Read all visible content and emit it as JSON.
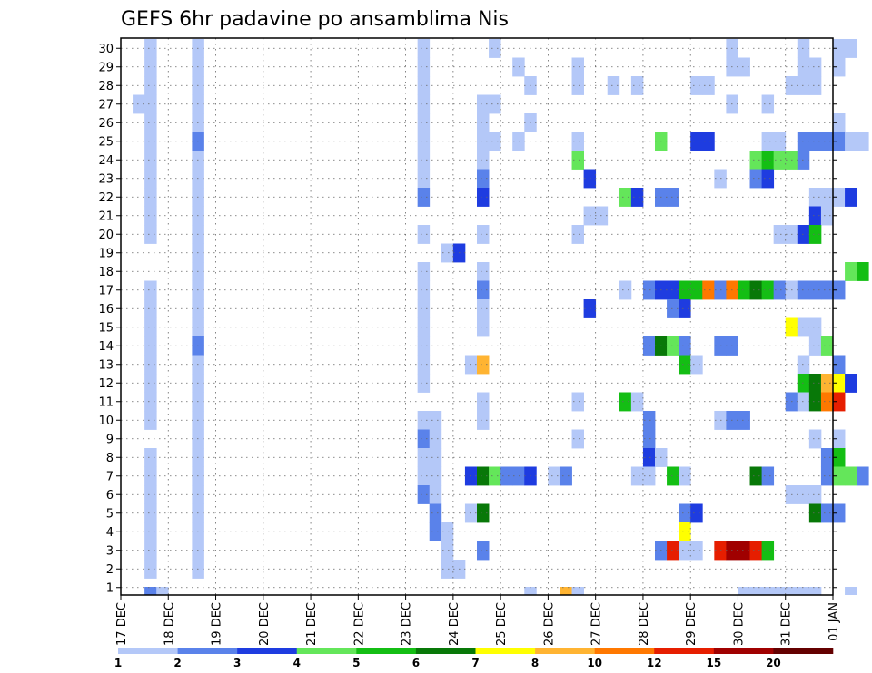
{
  "chart_data": {
    "type": "heatmap",
    "title": "GEFS 6hr padavine po ansamblima Nis",
    "xlabel": "",
    "ylabel": "",
    "x_ticks": [
      "17 DEC",
      "18 DEC",
      "19 DEC",
      "20 DEC",
      "21 DEC",
      "22 DEC",
      "23 DEC",
      "24 DEC",
      "25 DEC",
      "26 DEC",
      "27 DEC",
      "28 DEC",
      "29 DEC",
      "30 DEC",
      "31 DEC",
      "01 JAN"
    ],
    "y_ticks": [
      "1",
      "2",
      "3",
      "4",
      "5",
      "6",
      "7",
      "8",
      "9",
      "10",
      "11",
      "12",
      "13",
      "14",
      "15",
      "16",
      "17",
      "18",
      "19",
      "20",
      "21",
      "22",
      "23",
      "24",
      "25",
      "26",
      "27",
      "28",
      "29",
      "30"
    ],
    "time_steps_per_day": 4,
    "grid": true,
    "legend_position": "bottom",
    "legend": {
      "labels": [
        "1",
        "2",
        "3",
        "4",
        "5",
        "6",
        "7",
        "8",
        "10",
        "12",
        "15",
        "20"
      ],
      "colors": [
        "#b4c8f8",
        "#5a82ea",
        "#1e3ce0",
        "#64e65a",
        "#14be14",
        "#087808",
        "#ffff00",
        "#ffb432",
        "#ff7800",
        "#e61e00",
        "#a00000",
        "#640000"
      ]
    },
    "cells": [
      [
        30,
        0.5,
        1
      ],
      [
        30,
        1.5,
        1
      ],
      [
        30,
        6.25,
        1
      ],
      [
        30,
        7.75,
        1
      ],
      [
        30,
        12.75,
        1
      ],
      [
        30,
        14.25,
        1
      ],
      [
        30,
        15,
        1
      ],
      [
        30,
        15.25,
        1
      ],
      [
        29,
        0.5,
        1
      ],
      [
        29,
        1.5,
        1
      ],
      [
        29,
        6.25,
        1
      ],
      [
        29,
        8.25,
        1
      ],
      [
        29,
        9.5,
        1
      ],
      [
        29,
        12.75,
        1
      ],
      [
        29,
        13,
        1
      ],
      [
        29,
        14.25,
        1
      ],
      [
        29,
        14.5,
        1
      ],
      [
        29,
        15,
        1
      ],
      [
        28,
        0.5,
        1
      ],
      [
        28,
        1.5,
        1
      ],
      [
        28,
        6.25,
        1
      ],
      [
        28,
        8.5,
        1
      ],
      [
        28,
        9.5,
        1
      ],
      [
        28,
        10.25,
        1
      ],
      [
        28,
        10.75,
        1
      ],
      [
        28,
        12,
        1
      ],
      [
        28,
        12.25,
        1
      ],
      [
        28,
        14,
        1
      ],
      [
        28,
        14.25,
        1
      ],
      [
        28,
        14.5,
        1
      ],
      [
        27,
        0.25,
        1
      ],
      [
        27,
        0.5,
        1
      ],
      [
        27,
        1.5,
        1
      ],
      [
        27,
        6.25,
        1
      ],
      [
        27,
        7.5,
        1
      ],
      [
        27,
        7.75,
        1
      ],
      [
        27,
        12.75,
        1
      ],
      [
        27,
        13.5,
        1
      ],
      [
        26,
        0.5,
        1
      ],
      [
        26,
        1.5,
        1
      ],
      [
        26,
        6.25,
        1
      ],
      [
        26,
        7.5,
        1
      ],
      [
        26,
        8.5,
        1
      ],
      [
        26,
        15,
        1
      ],
      [
        25,
        0.5,
        1
      ],
      [
        25,
        1.5,
        2
      ],
      [
        25,
        6.25,
        1
      ],
      [
        25,
        7.5,
        1
      ],
      [
        25,
        7.75,
        1
      ],
      [
        25,
        8.25,
        1
      ],
      [
        25,
        9.5,
        1
      ],
      [
        25,
        11.25,
        4
      ],
      [
        25,
        12,
        3
      ],
      [
        25,
        12.25,
        3
      ],
      [
        25,
        13.5,
        1
      ],
      [
        25,
        13.75,
        1
      ],
      [
        25,
        14.25,
        2
      ],
      [
        25,
        14.5,
        2
      ],
      [
        25,
        14.75,
        2
      ],
      [
        25,
        15,
        2
      ],
      [
        25,
        15.25,
        1
      ],
      [
        25,
        15.5,
        1
      ],
      [
        24,
        0.5,
        1
      ],
      [
        24,
        1.5,
        1
      ],
      [
        24,
        6.25,
        1
      ],
      [
        24,
        7.5,
        1
      ],
      [
        24,
        9.5,
        4
      ],
      [
        24,
        13.25,
        4
      ],
      [
        24,
        13.5,
        5
      ],
      [
        24,
        13.75,
        4
      ],
      [
        24,
        14,
        4
      ],
      [
        24,
        14.25,
        2
      ],
      [
        23,
        0.5,
        1
      ],
      [
        23,
        1.5,
        1
      ],
      [
        23,
        6.25,
        1
      ],
      [
        23,
        7.5,
        2
      ],
      [
        23,
        9.75,
        3
      ],
      [
        23,
        12.5,
        1
      ],
      [
        23,
        13.25,
        2
      ],
      [
        23,
        13.5,
        3
      ],
      [
        22,
        0.5,
        1
      ],
      [
        22,
        1.5,
        1
      ],
      [
        22,
        6.25,
        2
      ],
      [
        22,
        7.5,
        3
      ],
      [
        22,
        10.5,
        4
      ],
      [
        22,
        10.75,
        3
      ],
      [
        22,
        11.25,
        2
      ],
      [
        22,
        11.5,
        2
      ],
      [
        22,
        14.5,
        1
      ],
      [
        22,
        14.75,
        1
      ],
      [
        22,
        15,
        1
      ],
      [
        22,
        15.25,
        3
      ],
      [
        21,
        0.5,
        1
      ],
      [
        21,
        1.5,
        1
      ],
      [
        21,
        9.75,
        1
      ],
      [
        21,
        10,
        1
      ],
      [
        21,
        14.5,
        3
      ],
      [
        21,
        14.75,
        1
      ],
      [
        20,
        0.5,
        1
      ],
      [
        20,
        1.5,
        1
      ],
      [
        20,
        6.25,
        1
      ],
      [
        20,
        7.5,
        1
      ],
      [
        20,
        9.5,
        1
      ],
      [
        20,
        13.75,
        1
      ],
      [
        20,
        14,
        1
      ],
      [
        20,
        14.25,
        3
      ],
      [
        20,
        14.5,
        5
      ],
      [
        19,
        1.5,
        1
      ],
      [
        19,
        6.75,
        1
      ],
      [
        19,
        7,
        3
      ],
      [
        18,
        1.5,
        1
      ],
      [
        18,
        6.25,
        1
      ],
      [
        18,
        7.5,
        1
      ],
      [
        18,
        15.25,
        4
      ],
      [
        18,
        15.5,
        5
      ],
      [
        17,
        0.5,
        1
      ],
      [
        17,
        1.5,
        1
      ],
      [
        17,
        6.25,
        1
      ],
      [
        17,
        7.5,
        2
      ],
      [
        17,
        10.5,
        1
      ],
      [
        17,
        11,
        2
      ],
      [
        17,
        11.25,
        3
      ],
      [
        17,
        11.5,
        3
      ],
      [
        17,
        11.75,
        5
      ],
      [
        17,
        12,
        5
      ],
      [
        17,
        12.25,
        9
      ],
      [
        17,
        12.5,
        2
      ],
      [
        17,
        12.75,
        9
      ],
      [
        17,
        13,
        5
      ],
      [
        17,
        13.25,
        6
      ],
      [
        17,
        13.5,
        5
      ],
      [
        17,
        13.75,
        2
      ],
      [
        17,
        14,
        1
      ],
      [
        17,
        14.25,
        2
      ],
      [
        17,
        14.5,
        2
      ],
      [
        17,
        14.75,
        2
      ],
      [
        17,
        15,
        2
      ],
      [
        16,
        0.5,
        1
      ],
      [
        16,
        1.5,
        1
      ],
      [
        16,
        6.25,
        1
      ],
      [
        16,
        7.5,
        1
      ],
      [
        16,
        9.75,
        3
      ],
      [
        16,
        11.5,
        2
      ],
      [
        16,
        11.75,
        3
      ],
      [
        15,
        0.5,
        1
      ],
      [
        15,
        1.5,
        1
      ],
      [
        15,
        6.25,
        1
      ],
      [
        15,
        7.5,
        1
      ],
      [
        15,
        14,
        7
      ],
      [
        15,
        14.25,
        1
      ],
      [
        15,
        14.5,
        1
      ],
      [
        14,
        0.5,
        1
      ],
      [
        14,
        1.5,
        2
      ],
      [
        14,
        6.25,
        1
      ],
      [
        14,
        11,
        2
      ],
      [
        14,
        11.25,
        6
      ],
      [
        14,
        11.5,
        4
      ],
      [
        14,
        11.75,
        2
      ],
      [
        14,
        12.5,
        2
      ],
      [
        14,
        12.75,
        2
      ],
      [
        14,
        14.5,
        1
      ],
      [
        14,
        14.75,
        4
      ],
      [
        13,
        0.5,
        1
      ],
      [
        13,
        1.5,
        1
      ],
      [
        13,
        6.25,
        1
      ],
      [
        13,
        7.25,
        1
      ],
      [
        13,
        7.5,
        8
      ],
      [
        13,
        11.75,
        5
      ],
      [
        13,
        12,
        1
      ],
      [
        13,
        14.25,
        1
      ],
      [
        13,
        15,
        2
      ],
      [
        12,
        0.5,
        1
      ],
      [
        12,
        1.5,
        1
      ],
      [
        12,
        6.25,
        1
      ],
      [
        12,
        14.25,
        5
      ],
      [
        12,
        14.5,
        6
      ],
      [
        12,
        14.75,
        8
      ],
      [
        12,
        15,
        7
      ],
      [
        12,
        15.25,
        3
      ],
      [
        11,
        0.5,
        1
      ],
      [
        11,
        1.5,
        1
      ],
      [
        11,
        7.5,
        1
      ],
      [
        11,
        9.5,
        1
      ],
      [
        11,
        10.5,
        5
      ],
      [
        11,
        10.75,
        1
      ],
      [
        11,
        14,
        2
      ],
      [
        11,
        14.25,
        1
      ],
      [
        11,
        14.5,
        6
      ],
      [
        11,
        14.75,
        9
      ],
      [
        11,
        15,
        10
      ],
      [
        10,
        0.5,
        1
      ],
      [
        10,
        1.5,
        1
      ],
      [
        10,
        6.25,
        1
      ],
      [
        10,
        6.5,
        1
      ],
      [
        10,
        7.5,
        1
      ],
      [
        10,
        11,
        2
      ],
      [
        10,
        12.5,
        1
      ],
      [
        10,
        12.75,
        2
      ],
      [
        10,
        13,
        2
      ],
      [
        9,
        1.5,
        1
      ],
      [
        9,
        6.25,
        2
      ],
      [
        9,
        6.5,
        1
      ],
      [
        9,
        9.5,
        1
      ],
      [
        9,
        11,
        2
      ],
      [
        9,
        14.5,
        1
      ],
      [
        9,
        15,
        1
      ],
      [
        8,
        0.5,
        1
      ],
      [
        8,
        1.5,
        1
      ],
      [
        8,
        6.25,
        1
      ],
      [
        8,
        6.5,
        1
      ],
      [
        8,
        11,
        3
      ],
      [
        8,
        11.25,
        1
      ],
      [
        8,
        14.75,
        2
      ],
      [
        8,
        15,
        5
      ],
      [
        7,
        0.5,
        1
      ],
      [
        7,
        1.5,
        1
      ],
      [
        7,
        6.25,
        1
      ],
      [
        7,
        6.5,
        1
      ],
      [
        7,
        7.25,
        3
      ],
      [
        7,
        7.5,
        6
      ],
      [
        7,
        7.75,
        4
      ],
      [
        7,
        8,
        2
      ],
      [
        7,
        8.25,
        2
      ],
      [
        7,
        8.5,
        3
      ],
      [
        7,
        9,
        1
      ],
      [
        7,
        9.25,
        2
      ],
      [
        7,
        10.75,
        1
      ],
      [
        7,
        11,
        1
      ],
      [
        7,
        11.5,
        5
      ],
      [
        7,
        11.75,
        1
      ],
      [
        7,
        13.25,
        6
      ],
      [
        7,
        13.5,
        2
      ],
      [
        7,
        14.75,
        2
      ],
      [
        7,
        15,
        4
      ],
      [
        7,
        15.25,
        4
      ],
      [
        7,
        15.5,
        2
      ],
      [
        6,
        0.5,
        1
      ],
      [
        6,
        1.5,
        1
      ],
      [
        6,
        6.25,
        2
      ],
      [
        6,
        6.5,
        1
      ],
      [
        6,
        14,
        1
      ],
      [
        6,
        14.25,
        1
      ],
      [
        6,
        14.5,
        1
      ],
      [
        5,
        0.5,
        1
      ],
      [
        5,
        1.5,
        1
      ],
      [
        5,
        6.5,
        2
      ],
      [
        5,
        7.25,
        1
      ],
      [
        5,
        7.5,
        6
      ],
      [
        5,
        11.75,
        2
      ],
      [
        5,
        12,
        3
      ],
      [
        5,
        14.5,
        6
      ],
      [
        5,
        14.75,
        2
      ],
      [
        5,
        15,
        2
      ],
      [
        4,
        0.5,
        1
      ],
      [
        4,
        1.5,
        1
      ],
      [
        4,
        6.5,
        2
      ],
      [
        4,
        6.75,
        1
      ],
      [
        4,
        11.75,
        7
      ],
      [
        3,
        0.5,
        1
      ],
      [
        3,
        1.5,
        1
      ],
      [
        3,
        6.75,
        1
      ],
      [
        3,
        7.5,
        2
      ],
      [
        3,
        11.25,
        2
      ],
      [
        3,
        11.5,
        10
      ],
      [
        3,
        11.75,
        1
      ],
      [
        3,
        12,
        1
      ],
      [
        3,
        12.5,
        10
      ],
      [
        3,
        12.75,
        11
      ],
      [
        3,
        13,
        11
      ],
      [
        3,
        13.25,
        10
      ],
      [
        3,
        13.5,
        5
      ],
      [
        2,
        0.5,
        1
      ],
      [
        2,
        1.5,
        1
      ],
      [
        2,
        6.75,
        1
      ],
      [
        2,
        7,
        1
      ]
    ],
    "bottom_row_cells": [
      [
        0.5,
        2
      ],
      [
        0.75,
        1
      ],
      [
        8.5,
        1
      ],
      [
        9.25,
        8
      ],
      [
        9.5,
        1
      ],
      [
        13,
        1
      ],
      [
        13.25,
        1
      ],
      [
        13.5,
        1
      ],
      [
        13.75,
        1
      ],
      [
        14,
        1
      ],
      [
        14.25,
        1
      ],
      [
        14.5,
        1
      ],
      [
        15.25,
        1
      ]
    ]
  }
}
